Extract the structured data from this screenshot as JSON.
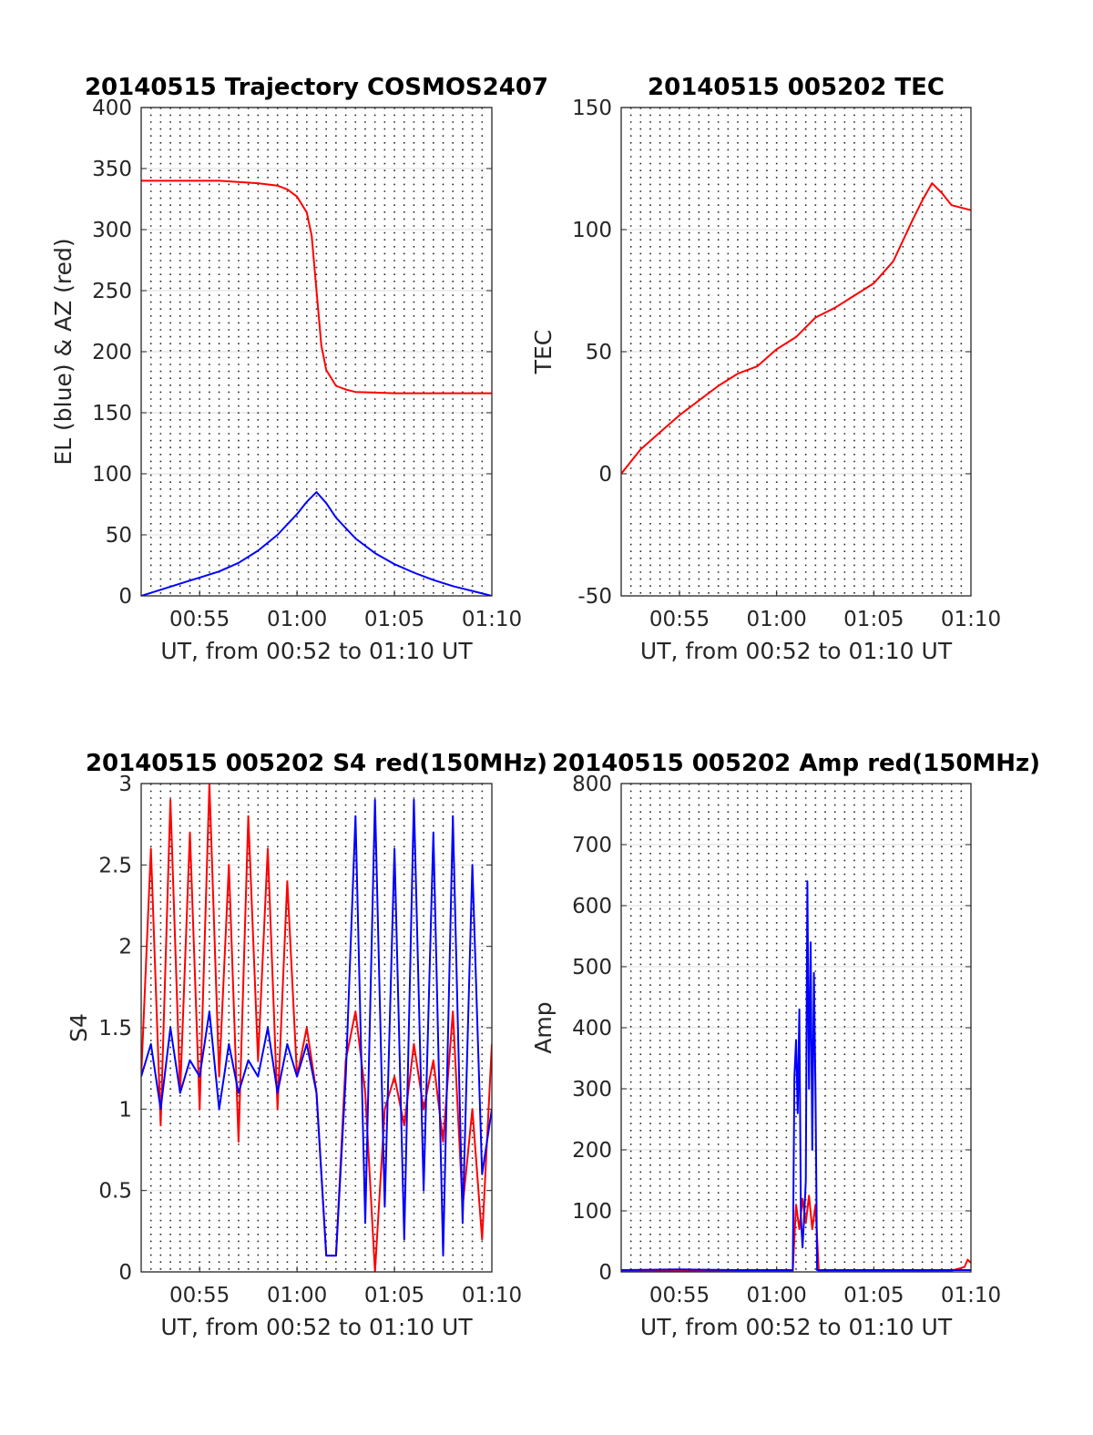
{
  "chart_data": [
    {
      "type": "line",
      "title": "20140515 Trajectory COSMOS2407",
      "xlabel": "UT, from 00:52 to 01:10 UT",
      "ylabel": "EL (blue) & AZ (red)",
      "xlim": [
        "00:52",
        "01:10"
      ],
      "ylim": [
        0,
        400
      ],
      "x_ticks": [
        "00:55",
        "01:00",
        "01:05",
        "01:10"
      ],
      "y_ticks": [
        "0",
        "50",
        "100",
        "150",
        "200",
        "250",
        "300",
        "350",
        "400"
      ],
      "grid": "dotted vertical every 30 s, solid horizontal",
      "series": [
        {
          "color": "#ff0000",
          "x": [
            "00:52",
            "00:54",
            "00:56",
            "00:57",
            "00:58",
            "00:59",
            "00:59:30",
            "01:00",
            "01:00:30",
            "01:00:45",
            "01:01",
            "01:01:15",
            "01:01:30",
            "01:02",
            "01:02:30",
            "01:03",
            "01:04",
            "01:05",
            "01:06",
            "01:08",
            "01:10"
          ],
          "values": [
            340,
            340,
            340,
            339,
            338,
            336,
            333,
            327,
            314,
            295,
            250,
            205,
            185,
            172,
            169,
            167,
            166.5,
            166,
            166,
            166,
            166
          ]
        },
        {
          "color": "#0000ff",
          "x": [
            "00:52",
            "00:53",
            "00:54",
            "00:55",
            "00:56",
            "00:57",
            "00:58",
            "00:59",
            "01:00",
            "01:00:30",
            "01:01",
            "01:01:30",
            "01:02",
            "01:03",
            "01:04",
            "01:05",
            "01:06",
            "01:07",
            "01:08",
            "01:09",
            "01:10"
          ],
          "values": [
            0,
            5,
            10,
            15,
            20,
            27,
            37,
            50,
            67,
            77,
            85,
            76,
            64,
            47,
            35,
            26,
            19,
            13,
            8,
            4,
            0
          ]
        }
      ]
    },
    {
      "type": "line",
      "title": "20140515 005202 TEC",
      "xlabel": "UT, from 00:52 to 01:10 UT",
      "ylabel": "TEC",
      "xlim": [
        "00:52",
        "01:10"
      ],
      "ylim": [
        -50,
        150
      ],
      "x_ticks": [
        "00:55",
        "01:00",
        "01:05",
        "01:10"
      ],
      "y_ticks": [
        "-50",
        "0",
        "50",
        "100",
        "150"
      ],
      "grid": "dotted vertical every 30 s, solid horizontal",
      "series": [
        {
          "color": "#ff0000",
          "x": [
            "00:52",
            "00:53",
            "00:54",
            "00:55",
            "00:56",
            "00:57",
            "00:58",
            "00:59",
            "01:00",
            "01:01",
            "01:02",
            "01:03",
            "01:04",
            "01:05",
            "01:06",
            "01:07",
            "01:07:30",
            "01:08",
            "01:08:30",
            "01:09",
            "01:10"
          ],
          "values": [
            0,
            10,
            17,
            24,
            30,
            36,
            41,
            44,
            51,
            56,
            64,
            68,
            73,
            78,
            87,
            104,
            112,
            119,
            115,
            110,
            108
          ]
        }
      ]
    },
    {
      "type": "line",
      "title": "20140515 005202 S4 red(150MHz)",
      "xlabel": "UT, from 00:52 to 01:10 UT",
      "ylabel": "S4",
      "xlim": [
        "00:52",
        "01:10"
      ],
      "ylim": [
        0,
        3
      ],
      "x_ticks": [
        "00:55",
        "01:00",
        "01:05",
        "01:10"
      ],
      "y_ticks": [
        "0",
        "0.5",
        "1",
        "1.5",
        "2",
        "2.5",
        "3"
      ],
      "grid": "dotted vertical every 30 s, solid horizontal",
      "series": [
        {
          "color": "#ff0000",
          "x": [
            "00:52",
            "00:52:30",
            "00:53",
            "00:53:30",
            "00:54",
            "00:54:30",
            "00:55",
            "00:55:30",
            "00:56",
            "00:56:30",
            "00:57",
            "00:57:30",
            "00:58",
            "00:58:30",
            "00:59",
            "00:59:30",
            "01:00",
            "01:00:30",
            "01:01",
            "01:01:30",
            "01:02",
            "01:02:30",
            "01:03",
            "01:03:30",
            "01:04",
            "01:04:30",
            "01:05",
            "01:05:30",
            "01:06",
            "01:06:30",
            "01:07",
            "01:07:30",
            "01:08",
            "01:08:30",
            "01:09",
            "01:09:30",
            "01:10"
          ],
          "values": [
            1.2,
            2.6,
            0.9,
            2.9,
            1.1,
            2.7,
            1.0,
            3.0,
            1.2,
            2.5,
            0.8,
            2.8,
            1.3,
            2.6,
            1.0,
            2.4,
            1.2,
            1.5,
            1.1,
            0.1,
            0.1,
            1.3,
            1.6,
            1.1,
            0.0,
            1.0,
            1.2,
            0.9,
            1.4,
            1.0,
            1.3,
            0.8,
            1.6,
            0.4,
            1.0,
            0.2,
            1.4
          ]
        },
        {
          "color": "#0000ff",
          "x": [
            "00:52",
            "00:52:30",
            "00:53",
            "00:53:30",
            "00:54",
            "00:54:30",
            "00:55",
            "00:55:30",
            "00:56",
            "00:56:30",
            "00:57",
            "00:57:30",
            "00:58",
            "00:58:30",
            "00:59",
            "00:59:30",
            "01:00",
            "01:00:30",
            "01:01",
            "01:01:30",
            "01:02",
            "01:02:30",
            "01:03",
            "01:03:30",
            "01:04",
            "01:04:30",
            "01:05",
            "01:05:30",
            "01:06",
            "01:06:30",
            "01:07",
            "01:07:30",
            "01:08",
            "01:08:30",
            "01:09",
            "01:09:30",
            "01:10"
          ],
          "values": [
            1.2,
            1.4,
            1.0,
            1.5,
            1.1,
            1.3,
            1.2,
            1.6,
            1.0,
            1.4,
            1.1,
            1.3,
            1.2,
            1.5,
            1.1,
            1.4,
            1.2,
            1.4,
            1.1,
            0.1,
            0.1,
            1.2,
            2.8,
            0.3,
            2.9,
            0.4,
            2.6,
            0.2,
            2.9,
            0.5,
            2.7,
            0.1,
            2.8,
            0.3,
            2.5,
            0.6,
            1.0
          ]
        }
      ]
    },
    {
      "type": "line",
      "title": "20140515 005202 Amp red(150MHz)",
      "xlabel": "UT, from 00:52 to 01:10 UT",
      "ylabel": "Amp",
      "xlim": [
        "00:52",
        "01:10"
      ],
      "ylim": [
        0,
        800
      ],
      "x_ticks": [
        "00:55",
        "01:00",
        "01:05",
        "01:10"
      ],
      "y_ticks": [
        "0",
        "100",
        "200",
        "300",
        "400",
        "500",
        "600",
        "700",
        "800"
      ],
      "grid": "dotted vertical every 30 s, solid horizontal",
      "series": [
        {
          "color": "#ff0000",
          "x": [
            "00:52",
            "01:00",
            "01:00:50",
            "01:01",
            "01:01:10",
            "01:01:20",
            "01:01:30",
            "01:01:40",
            "01:01:50",
            "01:02",
            "01:02:10",
            "01:04",
            "01:09",
            "01:09:40",
            "01:09:50",
            "01:10"
          ],
          "values": [
            2,
            2,
            2,
            110,
            70,
            120,
            80,
            125,
            70,
            110,
            2,
            2,
            2,
            8,
            20,
            15
          ]
        },
        {
          "color": "#0000ff",
          "x": [
            "00:52",
            "00:55",
            "00:58",
            "01:00",
            "01:00:50",
            "01:00:55",
            "01:01",
            "01:01:05",
            "01:01:10",
            "01:01:15",
            "01:01:20",
            "01:01:25",
            "01:01:30",
            "01:01:35",
            "01:01:40",
            "01:01:45",
            "01:01:50",
            "01:01:55",
            "01:02",
            "01:02:05",
            "01:03",
            "01:06",
            "01:10"
          ],
          "values": [
            3,
            4,
            3,
            3,
            3,
            320,
            380,
            260,
            430,
            90,
            40,
            90,
            150,
            640,
            300,
            540,
            200,
            490,
            300,
            3,
            3,
            3,
            3
          ]
        }
      ]
    }
  ]
}
